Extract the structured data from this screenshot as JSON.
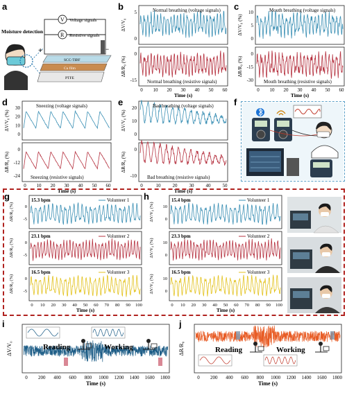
{
  "panel_labels": [
    "a",
    "b",
    "c",
    "d",
    "e",
    "f",
    "g",
    "h",
    "i",
    "j"
  ],
  "colors": {
    "blue": "#3a8fb4",
    "red": "#b5313f",
    "gold": "#e3c21d",
    "darkblue": "#1c5c86",
    "orange": "#e85c25",
    "dash": "#b0211e"
  },
  "panel_a": {
    "moisture": "Moisture detection",
    "voltage": "Voltage signals",
    "resistive": "Resistive signals",
    "v": "V",
    "r": "R",
    "layer_top": "SCC-TiBF",
    "layer_mid": "Cu film",
    "layer_bot": "PTFE",
    "plus": "+",
    "minus": "−"
  },
  "panel_b": {
    "top_label": "Normal breathing (voltage signals)",
    "bottom_label": "Normal breathing (resistive signals)",
    "ylabel_top": "ΔV/V₀",
    "ylabel_bottom": "ΔR/R₀ (%)",
    "xlabel": "Time (s)",
    "xticks": [
      "0",
      "10",
      "20",
      "30",
      "40",
      "50",
      "60"
    ],
    "yticks_top": [
      "5",
      "0"
    ],
    "yticks_bottom": [
      "0",
      "-15"
    ]
  },
  "panel_c": {
    "top_label": "Mouth breathing (voltage signals)",
    "bottom_label": "Mouth breathing (resistive signals)",
    "ylabel_top": "ΔV/V₀ (%)",
    "ylabel_bottom": "ΔR/R₀ (%)",
    "xlabel": "Time (s)",
    "xticks": [
      "0",
      "10",
      "20",
      "30",
      "40",
      "50",
      "60"
    ],
    "yticks_top": [
      "10",
      "5",
      "0"
    ],
    "yticks_bottom": [
      "0",
      "-15",
      "-30"
    ]
  },
  "panel_d": {
    "top_label": "Sneezing (voltage signals)",
    "bottom_label": "Sneezing (resistive signals)",
    "ylabel_top": "ΔV/V₀ (%)",
    "ylabel_bottom": "ΔR/R₀ (%)",
    "xlabel": "Time (s)",
    "xticks": [
      "0",
      "10",
      "20",
      "30",
      "40",
      "50",
      "60"
    ],
    "yticks_top": [
      "30",
      "20",
      "10",
      "0"
    ],
    "yticks_bottom": [
      "0",
      "-12",
      "-24"
    ]
  },
  "panel_e": {
    "top_label": "Bad breathing (voltage signals)",
    "bottom_label": "Bad breathing (resistive signals)",
    "ylabel_top": "ΔV/V₀ (%)",
    "ylabel_bottom": "ΔR/R₀ (%)",
    "xlabel": "Time (s)",
    "xticks": [
      "0",
      "10",
      "20",
      "30",
      "40",
      "50"
    ],
    "yticks_top": [
      "20",
      "10",
      "0"
    ],
    "yticks_bottom": [
      "0",
      "-10"
    ]
  },
  "panel_f": {
    "wave_label": ""
  },
  "panel_g": {
    "xlabel": "Time (s)",
    "xticks": [
      "0",
      "10",
      "20",
      "30",
      "40",
      "50",
      "60",
      "70",
      "80",
      "90",
      "100"
    ],
    "rows": [
      {
        "bpm": "15.3 bpm",
        "legend": "Volunteer 1",
        "ylabel": "ΔR/R₀ (%)",
        "yticks": [
          "0",
          "-5"
        ]
      },
      {
        "bpm": "23.1 bpm",
        "legend": "Volunteer 2",
        "ylabel": "ΔR/R₀ (%)",
        "yticks": [
          "0",
          "-5"
        ]
      },
      {
        "bpm": "16.5 bpm",
        "legend": "Volunteer 3",
        "ylabel": "ΔR/R₀ (%)",
        "yticks": [
          "0",
          "-5"
        ]
      }
    ]
  },
  "panel_h": {
    "xlabel": "Time (s)",
    "xticks": [
      "0",
      "10",
      "20",
      "30",
      "40",
      "50",
      "60",
      "70",
      "80",
      "90",
      "100"
    ],
    "rows": [
      {
        "bpm": "15.4 bpm",
        "legend": "Volunteer 1",
        "ylabel": "ΔV/V₀ (%)",
        "yticks": [
          "10",
          "0"
        ]
      },
      {
        "bpm": "23.3 bpm",
        "legend": "Volunteer 2",
        "ylabel": "ΔV/V₀ (%)",
        "yticks": [
          "10",
          "0"
        ]
      },
      {
        "bpm": "16.5 bpm",
        "legend": "Volunteer 3",
        "ylabel": "ΔV/V₀ (%)",
        "yticks": [
          "10",
          "0"
        ]
      }
    ]
  },
  "panel_i": {
    "ylabel": "ΔV/V₀",
    "xlabel": "Time (s)",
    "reading": "Reading",
    "working": "Working",
    "xticks": [
      "0",
      "200",
      "400",
      "600",
      "800",
      "1000",
      "1200",
      "1400",
      "1600",
      "1800"
    ]
  },
  "panel_j": {
    "ylabel": "ΔR/R₀",
    "xlabel": "Time (s)",
    "reading": "Reading",
    "working": "Working",
    "xticks": [
      "0",
      "200",
      "400",
      "600",
      "800",
      "1000",
      "1200",
      "1400",
      "1600",
      "1800"
    ]
  }
}
